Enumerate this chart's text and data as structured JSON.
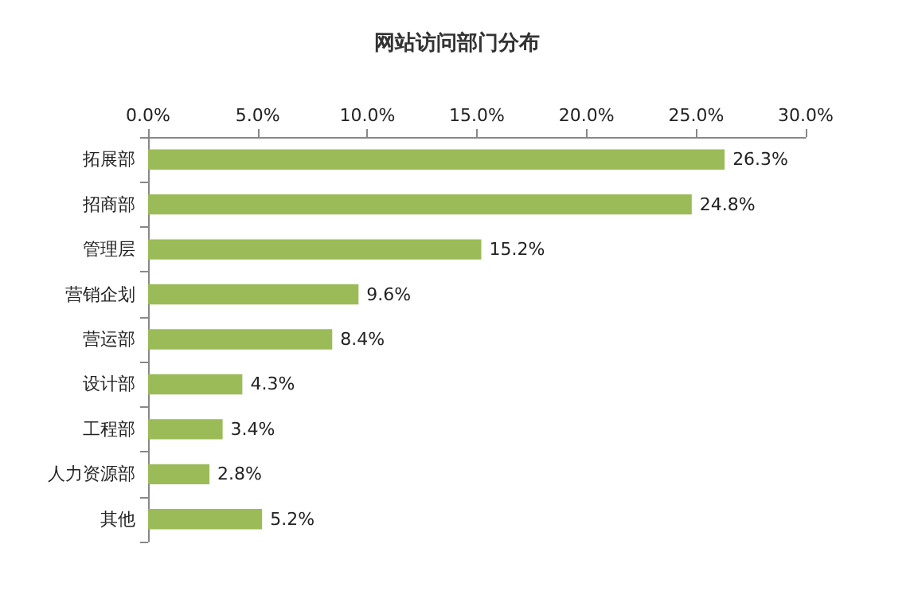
{
  "chart_data": {
    "type": "bar",
    "orientation": "horizontal",
    "title": "网站访问部门分布",
    "categories": [
      "拓展部",
      "招商部",
      "管理层",
      "营销企划",
      "营运部",
      "设计部",
      "工程部",
      "人力资源部",
      "其他"
    ],
    "values": [
      26.3,
      24.8,
      15.2,
      9.6,
      8.4,
      4.3,
      3.4,
      2.8,
      5.2
    ],
    "value_labels": [
      "26.3%",
      "24.8%",
      "15.2%",
      "9.6%",
      "8.4%",
      "4.3%",
      "3.4%",
      "2.8%",
      "5.2%"
    ],
    "color": "#9bbb59",
    "xlim": [
      0,
      30
    ],
    "xticks": [
      {
        "value": 0,
        "label": "0.0%"
      },
      {
        "value": 5,
        "label": "5.0%"
      },
      {
        "value": 10,
        "label": "10.0%"
      },
      {
        "value": 15,
        "label": "15.0%"
      },
      {
        "value": 20,
        "label": "20.0%"
      },
      {
        "value": 25,
        "label": "25.0%"
      },
      {
        "value": 30,
        "label": "30.0%"
      }
    ],
    "grid": false
  }
}
